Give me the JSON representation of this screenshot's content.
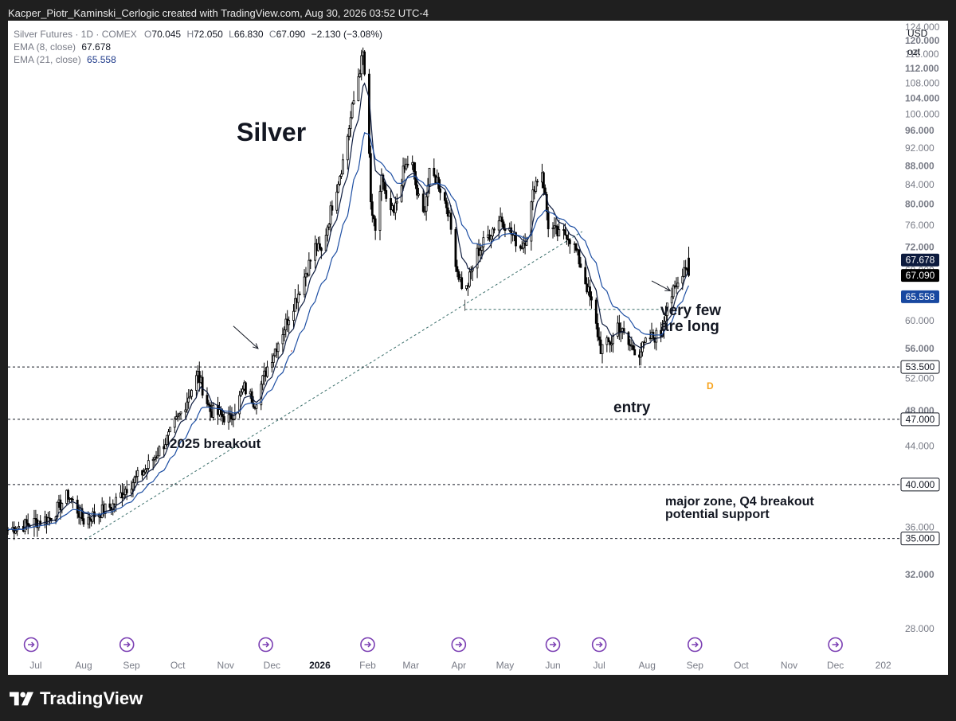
{
  "header": {
    "caption": "Kacper_Piotr_Kaminski_Cerlogic created with TradingView.com, Aug 30, 2026 03:52 UTC-4"
  },
  "legend": {
    "symbol": "Silver Futures · 1D · COMEX",
    "o_label": "O",
    "o_value": "70.045",
    "h_label": "H",
    "h_value": "72.050",
    "l_label": "L",
    "l_value": "66.830",
    "c_label": "C",
    "c_value": "67.090",
    "change": "−2.130 (−3.08%)",
    "ema8_label": "EMA (8, close)",
    "ema8_value": "67.678",
    "ema21_label": "EMA (21, close)",
    "ema21_value": "65.558"
  },
  "currency": {
    "code": "USD",
    "unit": "ozt"
  },
  "annotations": {
    "title": "Silver",
    "breakout": "2025 breakout",
    "very_few_1": "very few",
    "very_few_2": "are long",
    "entry": "entry",
    "zone_1": "major zone, Q4 breakout",
    "zone_2": "potential support",
    "marker": "D"
  },
  "brand": {
    "name": "TradingView"
  },
  "colors": {
    "candle": "#000000",
    "ema8": "#0d1b3e",
    "ema21": "#1e4fa3",
    "ema21_badge": "#1848a0",
    "marker": "#f7a21b",
    "event": "#7b3fb3"
  },
  "chart_data": {
    "type": "candlestick",
    "symbol": "Silver Futures",
    "interval": "1D",
    "exchange": "COMEX",
    "currency": "USD",
    "unit": "ozt",
    "y_scale": "log",
    "ylim": [
      26.5,
      126
    ],
    "x_range": [
      "2025-06-13",
      "2027-01-12"
    ],
    "y_ticks": [
      "124.000",
      "120.000",
      "116.000",
      "112.000",
      "108.000",
      "104.000",
      "100.000",
      "96.000",
      "92.000",
      "88.000",
      "84.000",
      "80.000",
      "76.000",
      "72.000",
      "68.000",
      "64.000",
      "60.000",
      "56.000",
      "52.000",
      "48.000",
      "44.000",
      "40.000",
      "36.000",
      "32.000",
      "28.000"
    ],
    "x_ticks": [
      {
        "label": "Jul",
        "date": "2025-07-01"
      },
      {
        "label": "Aug",
        "date": "2025-08-01"
      },
      {
        "label": "Sep",
        "date": "2025-09-01"
      },
      {
        "label": "Oct",
        "date": "2025-10-01"
      },
      {
        "label": "Nov",
        "date": "2025-11-01"
      },
      {
        "label": "Dec",
        "date": "2025-12-01"
      },
      {
        "label": "2026",
        "date": "2026-01-01"
      },
      {
        "label": "Feb",
        "date": "2026-02-01"
      },
      {
        "label": "Mar",
        "date": "2026-03-01"
      },
      {
        "label": "Apr",
        "date": "2026-04-01"
      },
      {
        "label": "May",
        "date": "2026-05-01"
      },
      {
        "label": "Jun",
        "date": "2026-06-01"
      },
      {
        "label": "Jul",
        "date": "2026-07-01"
      },
      {
        "label": "Aug",
        "date": "2026-08-01"
      },
      {
        "label": "Sep",
        "date": "2026-09-01"
      },
      {
        "label": "Oct",
        "date": "2026-10-01"
      },
      {
        "label": "Nov",
        "date": "2026-11-01"
      },
      {
        "label": "Dec",
        "date": "2026-12-01"
      },
      {
        "label": "202",
        "date": "2027-01-01"
      }
    ],
    "price_anchors": [
      [
        "2025-06-13",
        35.8
      ],
      [
        "2025-07-10",
        36.8
      ],
      [
        "2025-07-22",
        39.0
      ],
      [
        "2025-08-01",
        36.6
      ],
      [
        "2025-08-20",
        38.0
      ],
      [
        "2025-08-28",
        39.6
      ],
      [
        "2025-09-10",
        41.5
      ],
      [
        "2025-09-25",
        45.0
      ],
      [
        "2025-10-05",
        48.5
      ],
      [
        "2025-10-14",
        52.5
      ],
      [
        "2025-10-22",
        48.0
      ],
      [
        "2025-11-04",
        47.0
      ],
      [
        "2025-11-13",
        50.8
      ],
      [
        "2025-11-20",
        49.0
      ],
      [
        "2025-11-28",
        53.5
      ],
      [
        "2025-12-08",
        58.5
      ],
      [
        "2025-12-20",
        65.5
      ],
      [
        "2025-12-29",
        72.0
      ],
      [
        "2026-01-02",
        71.0
      ],
      [
        "2026-01-09",
        80.0
      ],
      [
        "2026-01-16",
        89.0
      ],
      [
        "2026-01-21",
        99.0
      ],
      [
        "2026-01-26",
        110.0
      ],
      [
        "2026-01-29",
        116.0
      ],
      [
        "2026-02-01",
        100.0
      ],
      [
        "2026-02-03",
        80.0
      ],
      [
        "2026-02-06",
        74.0
      ],
      [
        "2026-02-10",
        86.0
      ],
      [
        "2026-02-13",
        80.0
      ],
      [
        "2026-02-18",
        78.0
      ],
      [
        "2026-02-24",
        86.5
      ],
      [
        "2026-03-01",
        90.0
      ],
      [
        "2026-03-05",
        82.0
      ],
      [
        "2026-03-09",
        78.0
      ],
      [
        "2026-03-13",
        86.0
      ],
      [
        "2026-03-18",
        85.0
      ],
      [
        "2026-03-25",
        79.0
      ],
      [
        "2026-03-31",
        68.0
      ],
      [
        "2026-04-05",
        64.0
      ],
      [
        "2026-04-12",
        70.5
      ],
      [
        "2026-04-20",
        74.0
      ],
      [
        "2026-04-28",
        77.5
      ],
      [
        "2026-05-06",
        74.0
      ],
      [
        "2026-05-11",
        72.0
      ],
      [
        "2026-05-15",
        74.0
      ],
      [
        "2026-05-20",
        84.0
      ],
      [
        "2026-05-25",
        87.0
      ],
      [
        "2026-05-29",
        76.0
      ],
      [
        "2026-06-05",
        74.0
      ],
      [
        "2026-06-10",
        74.5
      ],
      [
        "2026-06-15",
        72.0
      ],
      [
        "2026-06-20",
        68.0
      ],
      [
        "2026-06-26",
        62.5
      ],
      [
        "2026-07-02",
        56.0
      ],
      [
        "2026-07-09",
        57.0
      ],
      [
        "2026-07-13",
        59.5
      ],
      [
        "2026-07-20",
        56.5
      ],
      [
        "2026-07-27",
        55.5
      ],
      [
        "2026-08-03",
        57.5
      ],
      [
        "2026-08-10",
        58.0
      ],
      [
        "2026-08-14",
        63.0
      ],
      [
        "2026-08-20",
        65.0
      ],
      [
        "2026-08-24",
        68.0
      ],
      [
        "2026-08-26",
        69.0
      ],
      [
        "2026-08-28",
        67.09
      ]
    ],
    "last_bar": {
      "open": 70.045,
      "high": 72.05,
      "low": 66.83,
      "close": 67.09,
      "change": -2.13,
      "change_pct": -3.08
    },
    "series": [
      {
        "name": "EMA (8, close)",
        "last": 67.678
      },
      {
        "name": "EMA (21, close)",
        "last": 65.558
      }
    ],
    "horizontal_levels": [
      {
        "value": 53.5,
        "label": "53.500",
        "style": "dashed"
      },
      {
        "value": 47.0,
        "label": "47.000",
        "style": "dashed"
      },
      {
        "value": 40.0,
        "label": "40.000",
        "style": "dashed"
      },
      {
        "value": 35.0,
        "label": "35.000",
        "style": "dashed"
      }
    ],
    "price_badges": [
      {
        "value": 67.678,
        "label": "67.678",
        "style": "dark"
      },
      {
        "value": 67.09,
        "label": "67.090",
        "style": "black"
      },
      {
        "value": 65.558,
        "label": "65.558",
        "style": "blue"
      }
    ],
    "support_segment": {
      "from": "2026-04-05",
      "to": "2026-08-14",
      "value": 61.7
    },
    "trendline": {
      "from": [
        "2025-08-02",
        34.9
      ],
      "to": [
        "2026-06-20",
        74.8
      ],
      "style": "dotted"
    },
    "arrows": [
      {
        "label": "2025 breakout",
        "from": [
          "2025-11-06",
          59.2
        ],
        "to": [
          "2025-11-22",
          56.0
        ]
      },
      {
        "label": "entry",
        "from": [
          "2026-08-04",
          66.2
        ],
        "to": [
          "2026-08-16",
          64.6
        ]
      }
    ],
    "event_icons": [
      "2025-06-28",
      "2025-08-29",
      "2025-11-27",
      "2026-02-01",
      "2026-04-01",
      "2026-06-01",
      "2026-07-01",
      "2026-09-01",
      "2026-12-01"
    ],
    "grid": false,
    "legend_position": "top-left"
  }
}
